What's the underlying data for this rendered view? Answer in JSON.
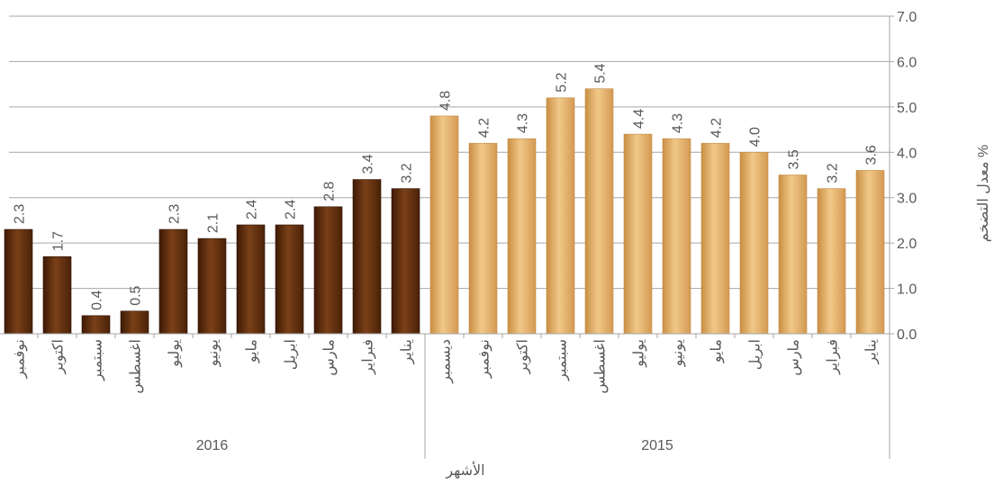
{
  "chart_data": {
    "type": "bar",
    "orientation": "rtl-x-axis",
    "y_axis_position": "right",
    "ylabel": "معدل التضخم %",
    "xlabel": "الأشهر",
    "ylim": [
      0,
      7
    ],
    "yticks": [
      "0.0",
      "1.0",
      "2.0",
      "3.0",
      "4.0",
      "5.0",
      "6.0",
      "7.0"
    ],
    "grid": true,
    "colors": {
      "y2015": "#E0A860",
      "y2016": "#5C2E0E",
      "grid": "#A6A6A6",
      "text": "#595959"
    },
    "groups": [
      {
        "name": "2015",
        "points": [
          {
            "month": "يناير",
            "value": 3.6,
            "label": "3.6"
          },
          {
            "month": "فبراير",
            "value": 3.2,
            "label": "3.2"
          },
          {
            "month": "مارس",
            "value": 3.5,
            "label": "3.5"
          },
          {
            "month": "ابريل",
            "value": 4.0,
            "label": "4.0"
          },
          {
            "month": "مايو",
            "value": 4.2,
            "label": "4.2"
          },
          {
            "month": "يونيو",
            "value": 4.3,
            "label": "4.3"
          },
          {
            "month": "يوليو",
            "value": 4.4,
            "label": "4.4"
          },
          {
            "month": "اغسطس",
            "value": 5.4,
            "label": "5.4"
          },
          {
            "month": "سبتمبر",
            "value": 5.2,
            "label": "5.2"
          },
          {
            "month": "اكتوبر",
            "value": 4.3,
            "label": "4.3"
          },
          {
            "month": "نوفمبر",
            "value": 4.2,
            "label": "4.2"
          },
          {
            "month": "ديسمبر",
            "value": 4.8,
            "label": "4.8"
          }
        ]
      },
      {
        "name": "2016",
        "points": [
          {
            "month": "يناير",
            "value": 3.2,
            "label": "3.2"
          },
          {
            "month": "فبراير",
            "value": 3.4,
            "label": "3.4"
          },
          {
            "month": "مارس",
            "value": 2.8,
            "label": "2.8"
          },
          {
            "month": "ابريل",
            "value": 2.4,
            "label": "2.4"
          },
          {
            "month": "مايو",
            "value": 2.4,
            "label": "2.4"
          },
          {
            "month": "يونيو",
            "value": 2.1,
            "label": "2.1"
          },
          {
            "month": "يوليو",
            "value": 2.3,
            "label": "2.3"
          },
          {
            "month": "اغسطس",
            "value": 0.5,
            "label": "0.5"
          },
          {
            "month": "سبتمبر",
            "value": 0.4,
            "label": "0.4"
          },
          {
            "month": "اكتوبر",
            "value": 1.7,
            "label": "1.7"
          },
          {
            "month": "نوفمبر",
            "value": 2.3,
            "label": "2.3"
          }
        ]
      }
    ]
  }
}
